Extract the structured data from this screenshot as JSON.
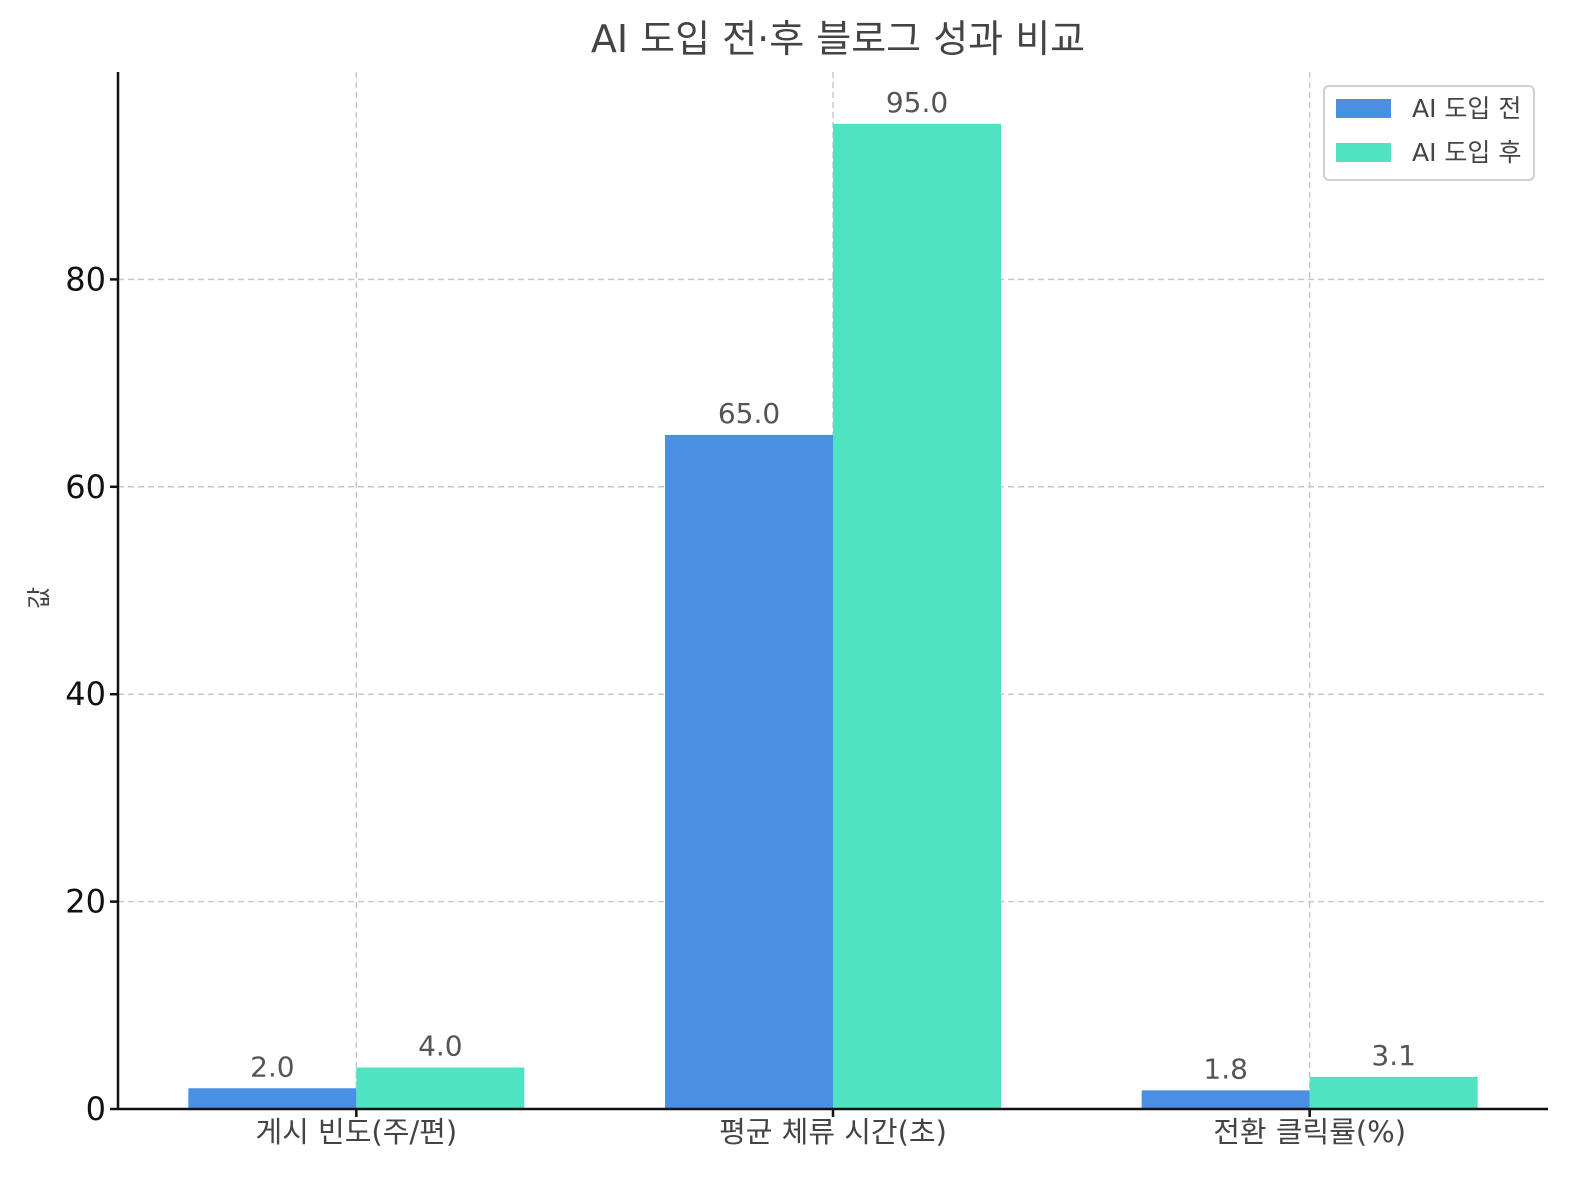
{
  "chart_data": {
    "type": "bar",
    "title": "AI 도입 전·후 블로그 성과 비교",
    "xlabel": "",
    "ylabel": "값",
    "categories": [
      "게시 빈도(주/편)",
      "평균 체류 시간(초)",
      "전환 클릭률(%)"
    ],
    "series": [
      {
        "name": "AI 도입 전",
        "values": [
          2.0,
          65.0,
          1.8
        ],
        "color": "#4a90e2"
      },
      {
        "name": "AI 도입 후",
        "values": [
          4.0,
          95.0,
          3.1
        ],
        "color": "#50e3c2"
      }
    ],
    "ylim": [
      0,
      100
    ],
    "yticks": [
      0,
      20,
      40,
      60,
      80
    ],
    "grid": true,
    "legend_position": "top-right",
    "data_label_format": "0.0"
  }
}
